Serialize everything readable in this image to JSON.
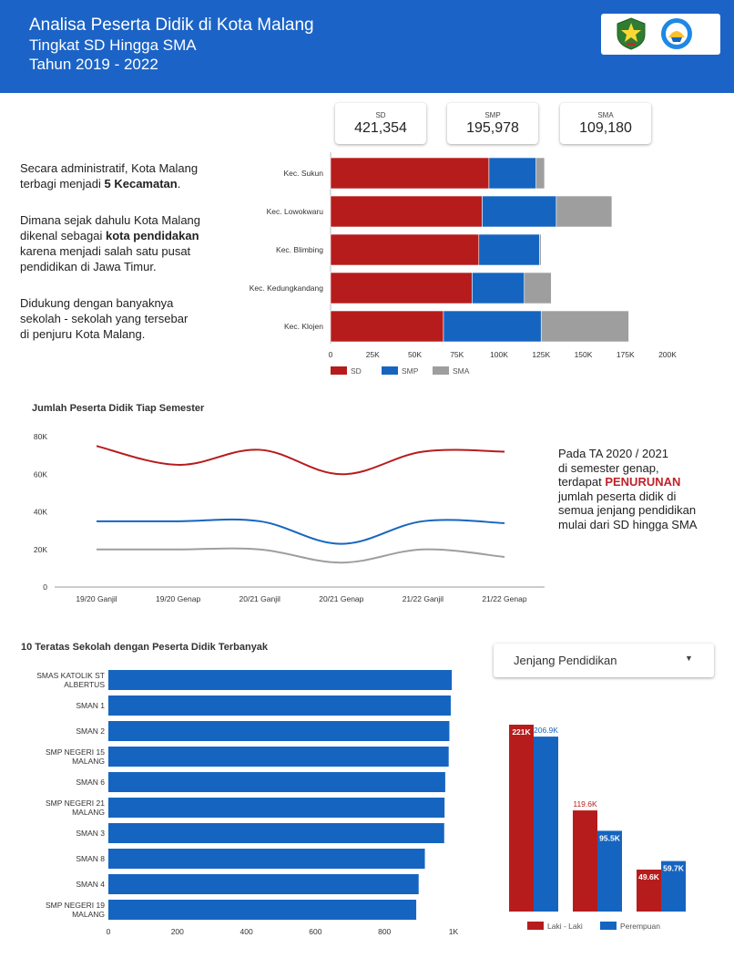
{
  "header": {
    "title": "Analisa Peserta Didik di Kota Malang",
    "subtitle1": "Tingkat SD Hingga SMA",
    "subtitle2": "Tahun 2019 - 2022"
  },
  "scorecards": [
    {
      "label": "SD",
      "value": "421,354"
    },
    {
      "label": "SMP",
      "value": "195,978"
    },
    {
      "label": "SMA",
      "value": "109,180"
    }
  ],
  "texts": {
    "p1a": "Secara administratif, Kota Malang",
    "p1b_pre": "terbagi menjadi ",
    "p1b_bold": "5 Kecamatan",
    "p1b_post": ".",
    "p2a": "Dimana sejak dahulu Kota Malang",
    "p2b_pre": "dikenal sebagai ",
    "p2b_bold": "kota pendidakan",
    "p2c": "karena menjadi salah satu pusat",
    "p2d": "pendidikan di Jawa Timur.",
    "p3a": "Didukung dengan banyaknya",
    "p3b": "sekolah - sekolah yang tersebar",
    "p3c": "di penjuru Kota Malang.",
    "r1": "Pada TA 2020 / 2021",
    "r2": "di semester genap,",
    "r3_pre": "terdapat ",
    "r3_bold": "PENURUNAN",
    "r4": "jumlah peserta didik di",
    "r5": "semua jenjang pendidikan",
    "r6": "mulai dari  SD hingga SMA"
  },
  "dropdown": {
    "label": "Jenjang Pendidikan"
  },
  "colors": {
    "header": "#1b63c6",
    "sd": "#b71c1c",
    "smp": "#1565c0",
    "sma": "#9e9e9e",
    "accent": "#c0222a"
  },
  "chart_data": [
    {
      "type": "bar",
      "orientation": "horizontal",
      "stacked": true,
      "categories": [
        "Kec. Sukun",
        "Kec. Lowokwaru",
        "Kec. Blimbing",
        "Kec. Kedungkandang",
        "Kec. Klojen"
      ],
      "series": [
        {
          "name": "SD",
          "color": "#b71c1c",
          "values": [
            94000,
            90000,
            88000,
            84000,
            67000
          ]
        },
        {
          "name": "SMP",
          "color": "#1565c0",
          "values": [
            28000,
            44000,
            36000,
            31000,
            58000
          ]
        },
        {
          "name": "SMA",
          "color": "#9e9e9e",
          "values": [
            5000,
            33000,
            1000,
            16000,
            52000
          ]
        }
      ],
      "xlim": [
        0,
        200000
      ],
      "xticks": [
        "0",
        "25K",
        "50K",
        "75K",
        "100K",
        "125K",
        "150K",
        "175K",
        "200K"
      ],
      "legend": "bottom-left"
    },
    {
      "type": "line",
      "title": "Jumlah Peserta Didik Tiap Semester",
      "x": [
        "19/20 Ganjil",
        "19/20 Genap",
        "20/21 Ganjil",
        "20/21 Genap",
        "21/22 Ganjil",
        "21/22 Genap"
      ],
      "series": [
        {
          "color": "#b71c1c",
          "values": [
            75000,
            65000,
            73000,
            60000,
            72000,
            72000
          ]
        },
        {
          "color": "#1565c0",
          "values": [
            35000,
            35000,
            35000,
            23000,
            35000,
            34000
          ]
        },
        {
          "color": "#9e9e9e",
          "values": [
            20000,
            20000,
            20000,
            13000,
            20000,
            16000
          ]
        }
      ],
      "ylim": [
        0,
        80000
      ],
      "yticks": [
        "0",
        "20K",
        "40K",
        "60K",
        "80K"
      ]
    },
    {
      "type": "bar",
      "orientation": "horizontal",
      "title": "10 Teratas Sekolah dengan Peserta Didik Terbanyak",
      "categories": [
        [
          "SMAS KATOLIK ST",
          "ALBERTUS"
        ],
        [
          "SMAN 1"
        ],
        [
          "SMAN 2"
        ],
        [
          "SMP NEGERI 15",
          "MALANG"
        ],
        [
          "SMAN 6"
        ],
        [
          "SMP NEGERI 21",
          "MALANG"
        ],
        [
          "SMAN 3"
        ],
        [
          "SMAN 8"
        ],
        [
          "SMAN 4"
        ],
        [
          "SMP NEGERI 19",
          "MALANG"
        ]
      ],
      "values": [
        995,
        992,
        988,
        986,
        976,
        974,
        973,
        917,
        899,
        892
      ],
      "color": "#1565c0",
      "xlim": [
        0,
        1000
      ],
      "xticks": [
        "0",
        "200",
        "400",
        "600",
        "800",
        "1K"
      ]
    },
    {
      "type": "bar",
      "categories": [
        "SD",
        "SMP",
        "SMA"
      ],
      "series": [
        {
          "name": "Laki - Laki",
          "color": "#b71c1c",
          "values": [
            221000,
            119600,
            49600
          ],
          "labels": [
            "221K",
            "119.6K",
            "49.6K"
          ]
        },
        {
          "name": "Perempuan",
          "color": "#1565c0",
          "values": [
            206900,
            95500,
            59700
          ],
          "labels": [
            "206.9K",
            "95.5K",
            "59.7K"
          ]
        }
      ],
      "ylim": [
        0,
        221000
      ],
      "legend": "bottom"
    }
  ]
}
